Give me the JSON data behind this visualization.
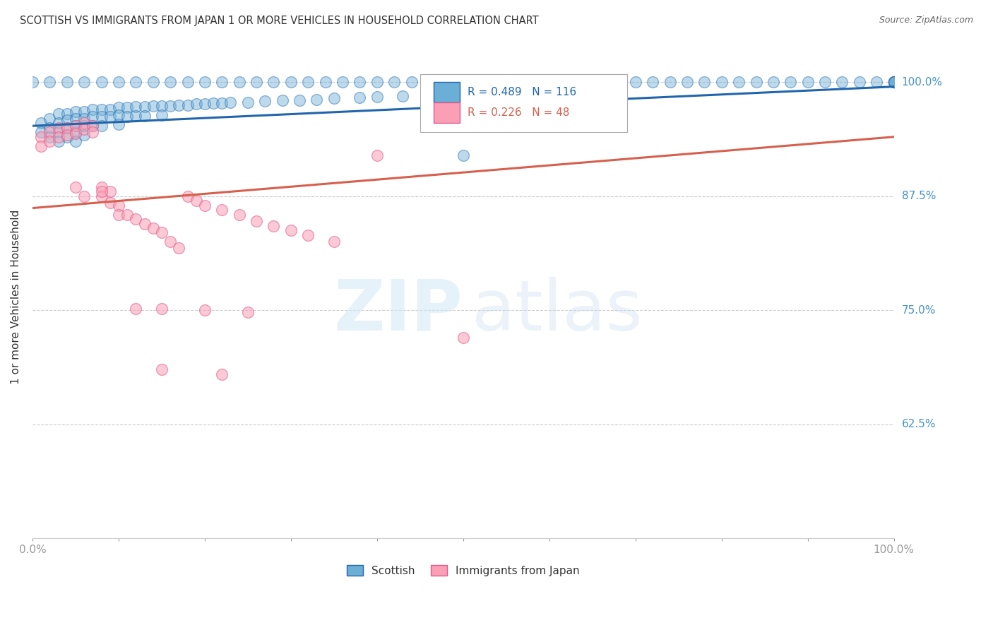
{
  "title": "SCOTTISH VS IMMIGRANTS FROM JAPAN 1 OR MORE VEHICLES IN HOUSEHOLD CORRELATION CHART",
  "source": "Source: ZipAtlas.com",
  "ylabel": "1 or more Vehicles in Household",
  "xlim": [
    0.0,
    1.0
  ],
  "ylim": [
    0.5,
    1.03
  ],
  "r_scottish": 0.489,
  "n_scottish": 116,
  "r_japan": 0.226,
  "n_japan": 48,
  "legend_scottish": "Scottish",
  "legend_japan": "Immigrants from Japan",
  "color_scottish": "#6baed6",
  "color_japan": "#fa9fb5",
  "color_scottish_line": "#2166ac",
  "color_japan_line": "#d6604d",
  "color_ytick_label": "#4393c3",
  "scottish_x": [
    0.01,
    0.01,
    0.02,
    0.02,
    0.02,
    0.03,
    0.03,
    0.03,
    0.03,
    0.04,
    0.04,
    0.04,
    0.04,
    0.05,
    0.05,
    0.05,
    0.05,
    0.05,
    0.06,
    0.06,
    0.06,
    0.06,
    0.07,
    0.07,
    0.07,
    0.08,
    0.08,
    0.08,
    0.09,
    0.09,
    0.1,
    0.1,
    0.1,
    0.11,
    0.11,
    0.12,
    0.12,
    0.13,
    0.13,
    0.14,
    0.15,
    0.15,
    0.16,
    0.17,
    0.18,
    0.19,
    0.2,
    0.21,
    0.22,
    0.23,
    0.25,
    0.27,
    0.29,
    0.31,
    0.33,
    0.35,
    0.38,
    0.4,
    0.43,
    0.46,
    0.5,
    0.54,
    0.58,
    0.0,
    0.02,
    0.04,
    0.06,
    0.08,
    0.1,
    0.12,
    0.14,
    0.16,
    0.18,
    0.2,
    0.22,
    0.24,
    0.26,
    0.28,
    0.3,
    0.32,
    0.34,
    0.36,
    0.38,
    0.4,
    0.42,
    0.44,
    0.46,
    0.48,
    0.5,
    0.52,
    0.54,
    0.56,
    0.58,
    0.6,
    0.62,
    0.64,
    0.66,
    0.68,
    0.7,
    0.72,
    0.74,
    0.76,
    0.78,
    0.8,
    0.82,
    0.84,
    0.86,
    0.88,
    0.9,
    0.92,
    0.94,
    0.96,
    0.98,
    1.0,
    1.0,
    1.0,
    1.0,
    1.0,
    1.0
  ],
  "scottish_y": [
    0.955,
    0.945,
    0.96,
    0.95,
    0.94,
    0.965,
    0.955,
    0.945,
    0.935,
    0.965,
    0.958,
    0.95,
    0.94,
    0.968,
    0.96,
    0.952,
    0.945,
    0.935,
    0.968,
    0.96,
    0.952,
    0.942,
    0.97,
    0.962,
    0.952,
    0.97,
    0.962,
    0.952,
    0.97,
    0.962,
    0.972,
    0.964,
    0.954,
    0.972,
    0.962,
    0.973,
    0.963,
    0.973,
    0.963,
    0.974,
    0.974,
    0.964,
    0.974,
    0.975,
    0.975,
    0.976,
    0.976,
    0.977,
    0.977,
    0.978,
    0.978,
    0.979,
    0.98,
    0.98,
    0.981,
    0.982,
    0.983,
    0.984,
    0.985,
    0.986,
    0.92,
    0.985,
    0.986,
    1.0,
    1.0,
    1.0,
    1.0,
    1.0,
    1.0,
    1.0,
    1.0,
    1.0,
    1.0,
    1.0,
    1.0,
    1.0,
    1.0,
    1.0,
    1.0,
    1.0,
    1.0,
    1.0,
    1.0,
    1.0,
    1.0,
    1.0,
    1.0,
    1.0,
    1.0,
    1.0,
    1.0,
    1.0,
    1.0,
    1.0,
    1.0,
    1.0,
    1.0,
    1.0,
    1.0,
    1.0,
    1.0,
    1.0,
    1.0,
    1.0,
    1.0,
    1.0,
    1.0,
    1.0,
    1.0,
    1.0,
    1.0,
    1.0,
    1.0,
    1.0,
    1.0,
    1.0,
    1.0,
    1.0,
    1.0
  ],
  "japan_x": [
    0.01,
    0.01,
    0.02,
    0.02,
    0.03,
    0.03,
    0.04,
    0.04,
    0.05,
    0.05,
    0.06,
    0.06,
    0.06,
    0.07,
    0.07,
    0.08,
    0.08,
    0.09,
    0.09,
    0.1,
    0.1,
    0.11,
    0.12,
    0.13,
    0.14,
    0.15,
    0.16,
    0.17,
    0.18,
    0.19,
    0.2,
    0.22,
    0.24,
    0.26,
    0.28,
    0.3,
    0.32,
    0.35,
    0.4,
    0.5,
    0.05,
    0.08,
    0.12,
    0.15,
    0.2,
    0.25,
    0.15,
    0.22
  ],
  "japan_y": [
    0.94,
    0.93,
    0.945,
    0.935,
    0.95,
    0.94,
    0.95,
    0.942,
    0.952,
    0.944,
    0.955,
    0.948,
    0.875,
    0.952,
    0.945,
    0.885,
    0.875,
    0.88,
    0.868,
    0.865,
    0.855,
    0.855,
    0.85,
    0.845,
    0.84,
    0.835,
    0.825,
    0.818,
    0.875,
    0.87,
    0.865,
    0.86,
    0.855,
    0.848,
    0.842,
    0.838,
    0.832,
    0.825,
    0.92,
    0.72,
    0.885,
    0.88,
    0.752,
    0.752,
    0.75,
    0.748,
    0.685,
    0.68
  ],
  "scot_trend_x0": 0.0,
  "scot_trend_y0": 0.952,
  "scot_trend_x1": 1.0,
  "scot_trend_y1": 0.995,
  "japan_trend_x0": 0.0,
  "japan_trend_y0": 0.862,
  "japan_trend_x1": 1.0,
  "japan_trend_y1": 0.94
}
